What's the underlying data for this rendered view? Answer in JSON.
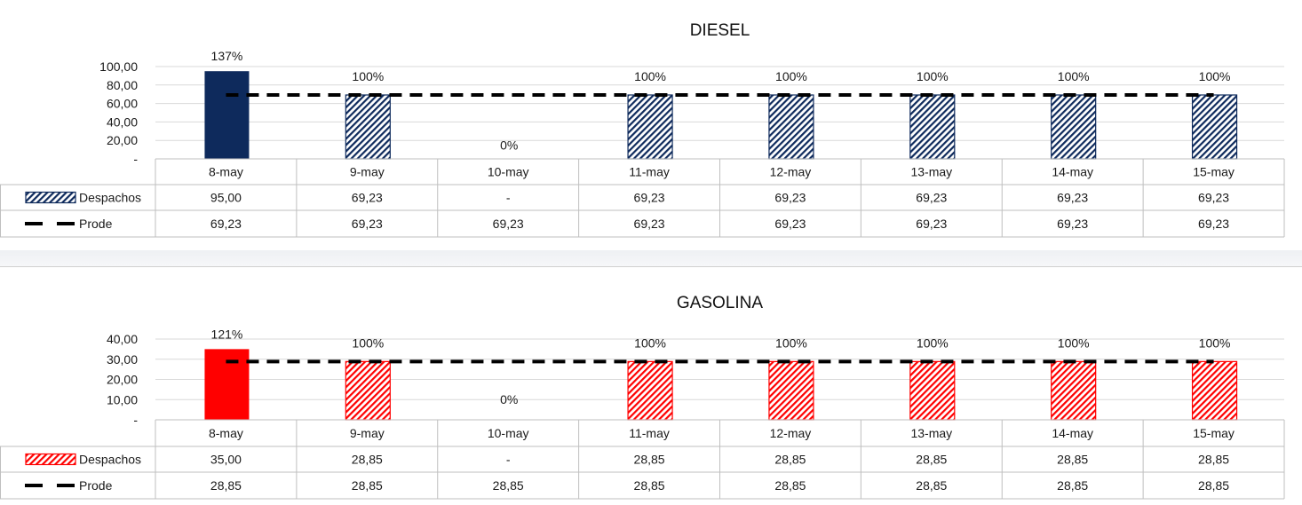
{
  "chart_data": [
    {
      "type": "bar",
      "title": "DIESEL",
      "categories": [
        "8-may",
        "9-may",
        "10-may",
        "11-may",
        "12-may",
        "13-may",
        "14-may",
        "15-may"
      ],
      "ylim": [
        0,
        100
      ],
      "yticks": [
        "-",
        "20,00",
        "40,00",
        "60,00",
        "80,00",
        "100,00"
      ],
      "grid": true,
      "series": [
        {
          "name": "Despachos",
          "kind": "bar",
          "color": "#0e2a5c",
          "values": [
            95.0,
            69.23,
            0,
            69.23,
            69.23,
            69.23,
            69.23,
            69.23
          ],
          "labels": [
            "95,00",
            "69,23",
            "-",
            "69,23",
            "69,23",
            "69,23",
            "69,23",
            "69,23"
          ],
          "first_solid": true
        },
        {
          "name": "Prode",
          "kind": "dashed-line",
          "color": "#000000",
          "values": [
            69.23,
            69.23,
            69.23,
            69.23,
            69.23,
            69.23,
            69.23,
            69.23
          ],
          "labels": [
            "69,23",
            "69,23",
            "69,23",
            "69,23",
            "69,23",
            "69,23",
            "69,23",
            "69,23"
          ]
        }
      ],
      "percent_labels": [
        "137%",
        "100%",
        "0%",
        "100%",
        "100%",
        "100%",
        "100%",
        "100%"
      ]
    },
    {
      "type": "bar",
      "title": "GASOLINA",
      "categories": [
        "8-may",
        "9-may",
        "10-may",
        "11-may",
        "12-may",
        "13-may",
        "14-may",
        "15-may"
      ],
      "ylim": [
        0,
        40
      ],
      "yticks": [
        "-",
        "10,00",
        "20,00",
        "30,00",
        "40,00"
      ],
      "grid": true,
      "series": [
        {
          "name": "Despachos",
          "kind": "bar",
          "color": "#ff0000",
          "values": [
            35.0,
            28.85,
            0,
            28.85,
            28.85,
            28.85,
            28.85,
            28.85
          ],
          "labels": [
            "35,00",
            "28,85",
            "-",
            "28,85",
            "28,85",
            "28,85",
            "28,85",
            "28,85"
          ],
          "first_solid": true
        },
        {
          "name": "Prode",
          "kind": "dashed-line",
          "color": "#000000",
          "values": [
            28.85,
            28.85,
            28.85,
            28.85,
            28.85,
            28.85,
            28.85,
            28.85
          ],
          "labels": [
            "28,85",
            "28,85",
            "28,85",
            "28,85",
            "28,85",
            "28,85",
            "28,85",
            "28,85"
          ]
        }
      ],
      "percent_labels": [
        "121%",
        "100%",
        "0%",
        "100%",
        "100%",
        "100%",
        "100%",
        "100%"
      ]
    }
  ]
}
